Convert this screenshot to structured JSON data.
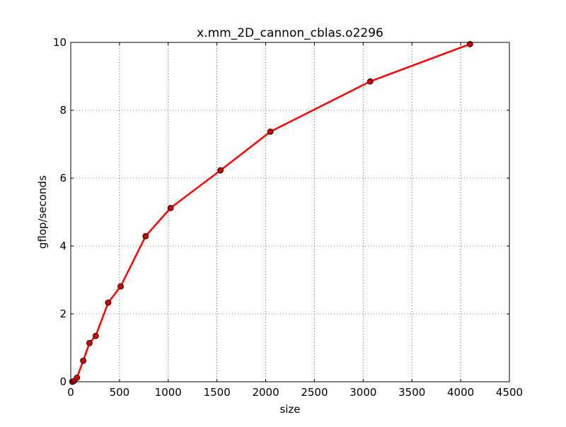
{
  "chart_data": {
    "type": "line",
    "title": "x.mm_2D_cannon_cblas.o2296",
    "xlabel": "size",
    "ylabel": "gflop/seconds",
    "xlim": [
      0,
      4500
    ],
    "ylim": [
      0,
      10
    ],
    "xticks": [
      0,
      500,
      1000,
      1500,
      2000,
      2500,
      3000,
      3500,
      4000,
      4500
    ],
    "yticks": [
      0,
      2,
      4,
      6,
      8,
      10
    ],
    "grid": true,
    "series": [
      {
        "color": "#ff0000",
        "marker_color": "#cc0000",
        "x": [
          16,
          32,
          64,
          128,
          192,
          256,
          384,
          512,
          768,
          1024,
          1536,
          2048,
          3072,
          4096
        ],
        "y": [
          0.0,
          0.02,
          0.12,
          0.62,
          1.14,
          1.35,
          2.33,
          2.81,
          4.29,
          5.12,
          6.23,
          7.37,
          8.85,
          9.95
        ]
      }
    ]
  }
}
